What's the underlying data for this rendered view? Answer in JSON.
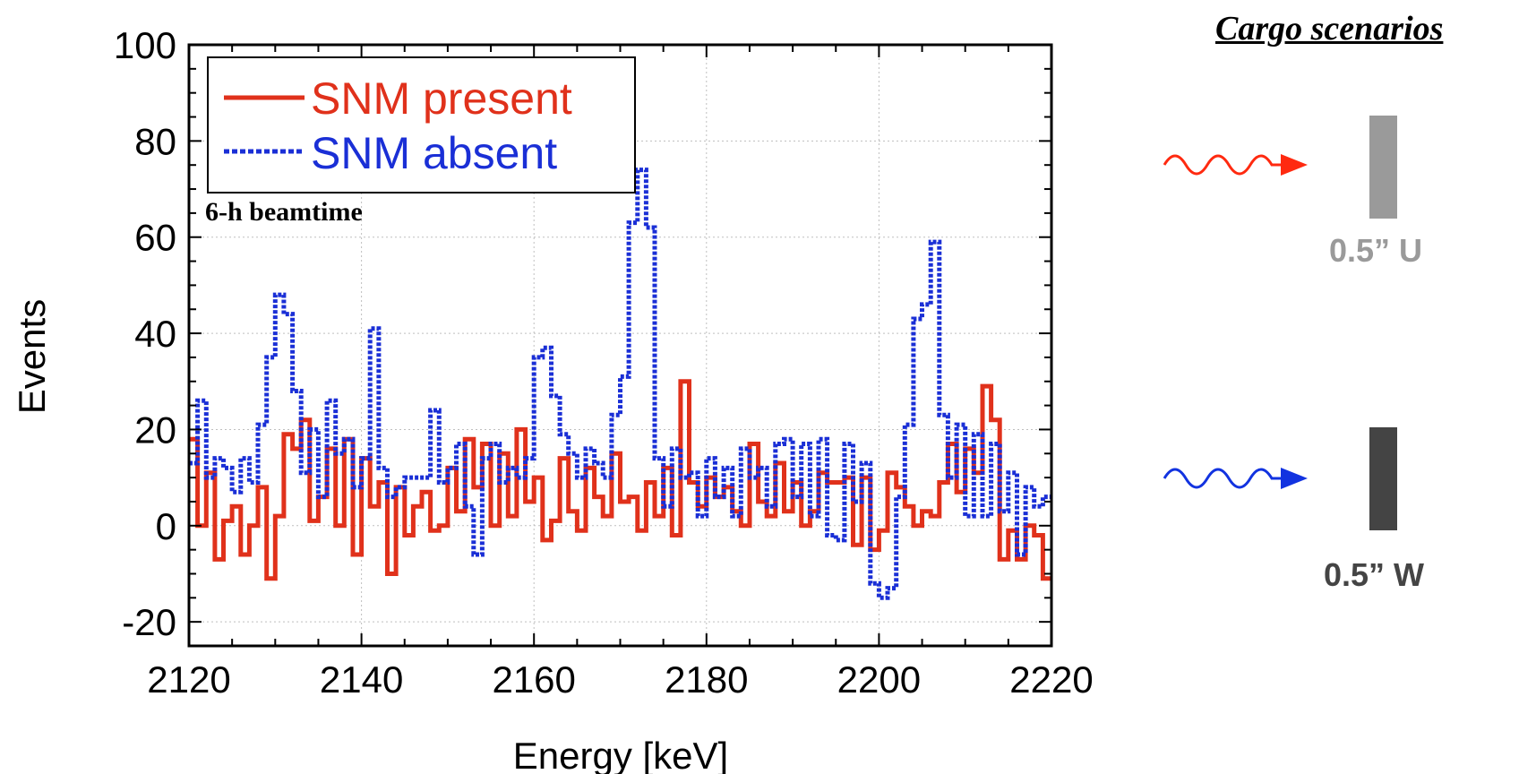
{
  "colors": {
    "snm_present": "#e0311b",
    "snm_absent": "#1a2fd6",
    "uranium_bar": "#9a9a9a",
    "tungsten_bar": "#444444",
    "red_arrow": "#ff2a10",
    "blue_arrow": "#1233e0"
  },
  "chart_data": {
    "type": "line",
    "step": true,
    "xlabel": "Energy [keV]",
    "ylabel": "Events",
    "xlim": [
      2120,
      2220
    ],
    "ylim": [
      -25,
      100
    ],
    "x_ticks": [
      2120,
      2140,
      2160,
      2180,
      2200,
      2220
    ],
    "y_ticks": [
      100,
      80,
      60,
      40,
      20,
      0,
      -20
    ],
    "x_minor_step": 5,
    "y_minor_step": 5,
    "grid": true,
    "legend_position": "top-left",
    "annotation": "6-h beamtime",
    "series": [
      {
        "name": "SNM present",
        "color": "#e0311b",
        "style": "solid",
        "x": [
          2120,
          2121,
          2122,
          2123,
          2124,
          2125,
          2126,
          2127,
          2128,
          2129,
          2130,
          2131,
          2132,
          2133,
          2134,
          2135,
          2136,
          2137,
          2138,
          2139,
          2140,
          2141,
          2142,
          2143,
          2144,
          2145,
          2146,
          2147,
          2148,
          2149,
          2150,
          2151,
          2152,
          2153,
          2154,
          2155,
          2156,
          2157,
          2158,
          2159,
          2160,
          2161,
          2162,
          2163,
          2164,
          2165,
          2166,
          2167,
          2168,
          2169,
          2170,
          2171,
          2172,
          2173,
          2174,
          2175,
          2176,
          2177,
          2178,
          2179,
          2180,
          2181,
          2182,
          2183,
          2184,
          2185,
          2186,
          2187,
          2188,
          2189,
          2190,
          2191,
          2192,
          2193,
          2194,
          2195,
          2196,
          2197,
          2198,
          2199,
          2200,
          2201,
          2202,
          2203,
          2204,
          2205,
          2206,
          2207,
          2208,
          2209,
          2210,
          2211,
          2212,
          2213,
          2214,
          2215,
          2216,
          2217,
          2218,
          2219
        ],
        "y": [
          18,
          0,
          11,
          -7,
          1,
          4,
          -6,
          0,
          8,
          -11,
          2,
          19,
          16,
          22,
          1,
          6,
          16,
          0,
          18,
          -6,
          14,
          4,
          9,
          -10,
          8,
          -2,
          4,
          7,
          -1,
          0,
          12,
          3,
          18,
          8,
          17,
          0,
          15,
          2,
          20,
          5,
          10,
          -3,
          1,
          14,
          3,
          -1,
          12,
          6,
          2,
          15,
          5,
          6,
          -1,
          9,
          2,
          12,
          -2,
          30,
          9,
          4,
          10,
          6,
          8,
          3,
          0,
          17,
          5,
          2,
          13,
          3,
          9,
          0,
          3,
          11,
          9,
          9,
          10,
          -4,
          10,
          -5,
          -1,
          11,
          8,
          4,
          0,
          3,
          2,
          9,
          17,
          7,
          16,
          11,
          29,
          22,
          -7,
          -1,
          -7,
          0,
          -2,
          -11
        ]
      },
      {
        "name": "SNM absent",
        "color": "#1a2fd6",
        "style": "dashed",
        "x": [
          2120,
          2121,
          2122,
          2123,
          2124,
          2125,
          2126,
          2127,
          2128,
          2129,
          2130,
          2131,
          2132,
          2133,
          2134,
          2135,
          2136,
          2137,
          2138,
          2139,
          2140,
          2141,
          2142,
          2143,
          2144,
          2145,
          2146,
          2147,
          2148,
          2149,
          2150,
          2151,
          2152,
          2153,
          2154,
          2155,
          2156,
          2157,
          2158,
          2159,
          2160,
          2161,
          2162,
          2163,
          2164,
          2165,
          2166,
          2167,
          2168,
          2169,
          2170,
          2171,
          2172,
          2173,
          2174,
          2175,
          2176,
          2177,
          2178,
          2179,
          2180,
          2181,
          2182,
          2183,
          2184,
          2185,
          2186,
          2187,
          2188,
          2189,
          2190,
          2191,
          2192,
          2193,
          2194,
          2195,
          2196,
          2197,
          2198,
          2199,
          2200,
          2201,
          2202,
          2203,
          2204,
          2205,
          2206,
          2207,
          2208,
          2209,
          2210,
          2211,
          2212,
          2213,
          2214,
          2215,
          2216,
          2217,
          2218,
          2219
        ],
        "y": [
          13,
          26,
          10,
          14,
          12,
          7,
          14,
          9,
          21,
          35,
          48,
          44,
          28,
          11,
          20,
          6,
          26,
          15,
          18,
          8,
          14,
          41,
          12,
          6,
          8,
          10,
          10,
          10,
          24,
          9,
          12,
          17,
          4,
          -6,
          14,
          17,
          9,
          12,
          10,
          14,
          35,
          37,
          27,
          19,
          15,
          10,
          16,
          13,
          10,
          23,
          31,
          63,
          74,
          62,
          14,
          4,
          16,
          10,
          11,
          2,
          14,
          6,
          12,
          2,
          16,
          10,
          12,
          4,
          17,
          18,
          6,
          17,
          2,
          18,
          -2,
          -3,
          17,
          5,
          13,
          -12,
          -15,
          -13,
          6,
          21,
          43,
          46,
          59,
          23,
          10,
          21,
          2,
          19,
          2,
          17,
          3,
          11,
          -6,
          8,
          4,
          6
        ]
      }
    ]
  },
  "side_panel": {
    "title": "Cargo scenarios",
    "samples": [
      {
        "label": "0.5” U",
        "arrow": "red-arrow",
        "color": "#9a9a9a"
      },
      {
        "label": "0.5” W",
        "arrow": "blue-arrow",
        "color": "#444444"
      }
    ]
  }
}
